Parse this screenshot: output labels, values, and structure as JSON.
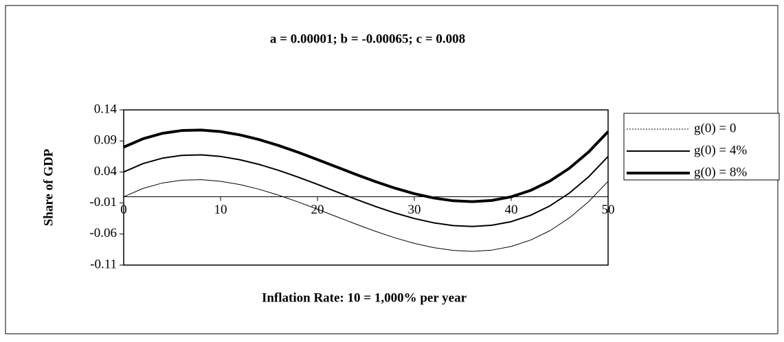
{
  "chart_data": {
    "type": "line",
    "title": "a = 0.00001;  b = -0.00065;  c = 0.008",
    "x_label": "Inflation Rate: 10 = 1,000% per year",
    "y_label": "Share of GDP",
    "x": [
      0,
      2,
      4,
      6,
      8,
      10,
      12,
      14,
      16,
      18,
      20,
      22,
      24,
      26,
      28,
      30,
      32,
      34,
      36,
      38,
      40,
      42,
      44,
      46,
      48,
      50
    ],
    "series": [
      {
        "name": "g(0) = 0",
        "color": "#000000",
        "width": 1,
        "values": [
          0,
          0.01348,
          0.02224,
          0.02676,
          0.02752,
          0.025,
          0.01968,
          0.01204,
          0.00256,
          -0.00828,
          -0.02,
          -0.03212,
          -0.04416,
          -0.05564,
          -0.06608,
          -0.075,
          -0.08192,
          -0.08636,
          -0.08784,
          -0.08588,
          -0.08,
          -0.06972,
          -0.05456,
          -0.03404,
          -0.00768,
          0.025
        ]
      },
      {
        "name": "g(0) = 4%",
        "color": "#000000",
        "width": 2,
        "values": [
          0.04,
          0.05348,
          0.06224,
          0.06676,
          0.06752,
          0.065,
          0.05968,
          0.05204,
          0.04256,
          0.03172,
          0.02,
          0.00788,
          -0.00416,
          -0.01564,
          -0.02608,
          -0.035,
          -0.04192,
          -0.04636,
          -0.04784,
          -0.04588,
          -0.04,
          -0.02972,
          -0.01456,
          0.00596,
          0.03232,
          0.065
        ]
      },
      {
        "name": "g(0) = 8%",
        "color": "#000000",
        "width": 4,
        "values": [
          0.08,
          0.09348,
          0.10224,
          0.10676,
          0.10752,
          0.105,
          0.09968,
          0.09204,
          0.08256,
          0.07172,
          0.06,
          0.04788,
          0.03584,
          0.02436,
          0.01392,
          0.005,
          -0.00192,
          -0.00636,
          -0.00784,
          -0.00588,
          0,
          0.01028,
          0.02544,
          0.04596,
          0.07232,
          0.105
        ]
      }
    ],
    "xlim": [
      0,
      50
    ],
    "xticks": [
      0,
      10,
      20,
      30,
      40,
      50
    ],
    "ylim": [
      -0.11,
      0.14
    ],
    "yticks": [
      -0.11,
      -0.06,
      -0.01,
      0.04,
      0.09,
      0.14
    ],
    "legend": "right"
  }
}
